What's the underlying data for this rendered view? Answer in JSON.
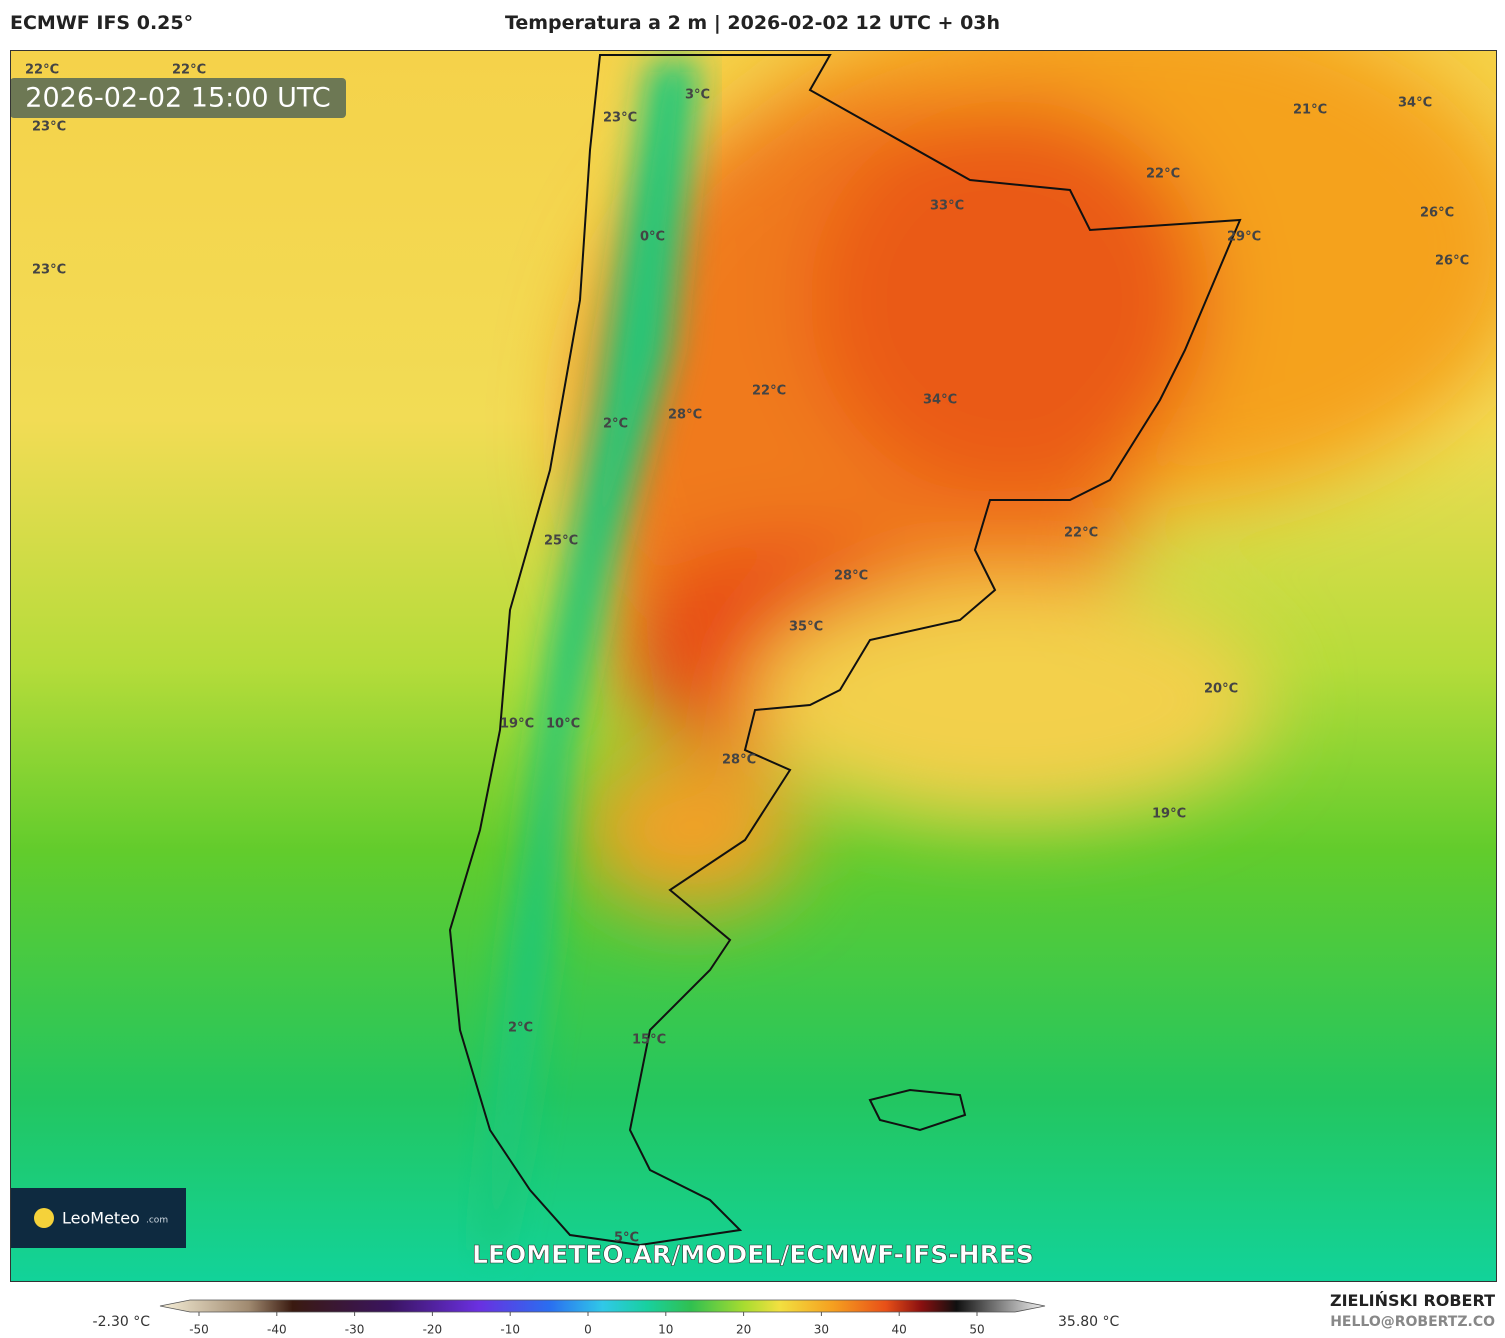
{
  "header": {
    "model": "ECMWF IFS 0.25°",
    "title": "Temperatura a 2 m | 2026-02-02 12 UTC + 03h"
  },
  "map": {
    "timestamp": "2026-02-02 15:00 UTC",
    "labels": [
      "22°C",
      "22°C",
      "23°C",
      "23°C",
      "3°C",
      "23°C",
      "21°C",
      "34°C",
      "22°C",
      "33°C",
      "26°C",
      "29°C",
      "26°C",
      "0°C",
      "22°C",
      "34°C",
      "28°C",
      "2°C",
      "22°C",
      "25°C",
      "28°C",
      "35°C",
      "20°C",
      "19°C",
      "10°C",
      "28°C",
      "19°C",
      "2°C",
      "15°C",
      "5°C"
    ],
    "logo": {
      "name": "LeoMeteo",
      "suffix": ".com"
    },
    "url": "LEOMETEO.AR/MODEL/ECMWF-IFS-HRES"
  },
  "colorbar": {
    "min_label": "-2.30 °C",
    "max_label": "35.80 °C",
    "ticks": [
      -50,
      -40,
      -30,
      -20,
      -10,
      0,
      10,
      20,
      30,
      40,
      50
    ]
  },
  "footer": {
    "author": "ZIELIŃSKI ROBERT",
    "email": "HELLO@ROBERTZ.CO"
  }
}
